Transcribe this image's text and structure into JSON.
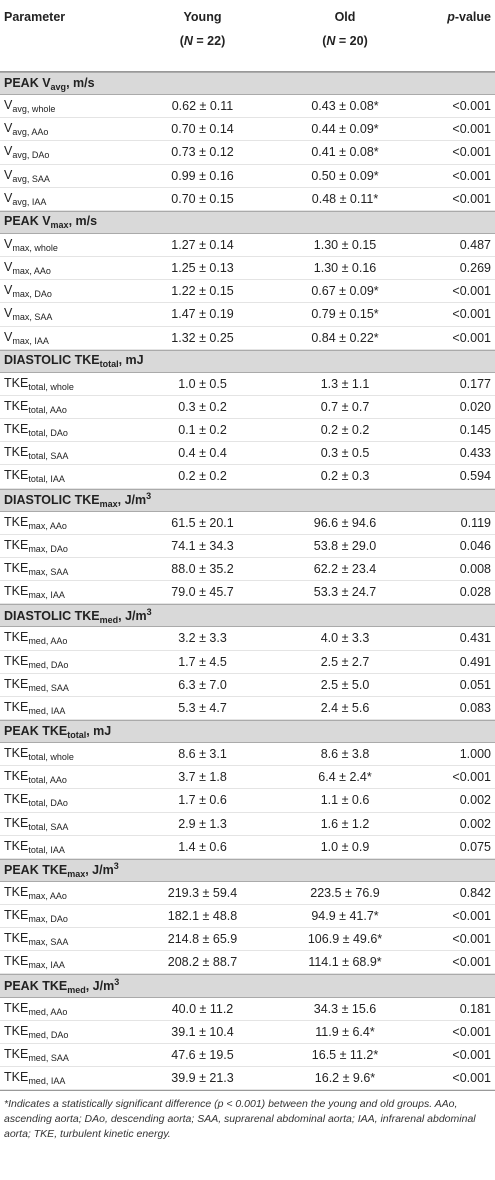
{
  "header": {
    "columns": [
      [
        {
          "text": "Parameter"
        }
      ],
      [
        {
          "text": "Young"
        }
      ],
      [
        {
          "text": "Old"
        }
      ],
      [
        {
          "text": "p",
          "style": "italic"
        },
        {
          "text": "-value"
        }
      ]
    ],
    "counts": [
      [
        {
          "text": "("
        },
        {
          "text": "N",
          "style": "italic"
        },
        {
          "text": " = 22)"
        }
      ],
      [
        {
          "text": "("
        },
        {
          "text": "N",
          "style": "italic"
        },
        {
          "text": " = 20)"
        }
      ]
    ]
  },
  "sections": [
    {
      "title": [
        {
          "text": "PEAK V"
        },
        {
          "text": "avg",
          "style": "sub"
        },
        {
          "text": ", m/s"
        }
      ],
      "rows": [
        {
          "param": [
            {
              "text": "V"
            },
            {
              "text": "avg, whole",
              "style": "sub"
            }
          ],
          "young": "0.62 ± 0.11",
          "old": "0.43 ± 0.08*",
          "p": "<0.001"
        },
        {
          "param": [
            {
              "text": "V"
            },
            {
              "text": "avg, AAo",
              "style": "sub"
            }
          ],
          "young": "0.70 ± 0.14",
          "old": "0.44 ± 0.09*",
          "p": "<0.001"
        },
        {
          "param": [
            {
              "text": "V"
            },
            {
              "text": "avg, DAo",
              "style": "sub"
            }
          ],
          "young": "0.73 ± 0.12",
          "old": "0.41 ± 0.08*",
          "p": "<0.001"
        },
        {
          "param": [
            {
              "text": "V"
            },
            {
              "text": "avg, SAA",
              "style": "sub"
            }
          ],
          "young": "0.99 ± 0.16",
          "old": "0.50 ± 0.09*",
          "p": "<0.001"
        },
        {
          "param": [
            {
              "text": "V"
            },
            {
              "text": "avg, IAA",
              "style": "sub"
            }
          ],
          "young": "0.70 ± 0.15",
          "old": "0.48 ± 0.11*",
          "p": "<0.001"
        }
      ]
    },
    {
      "title": [
        {
          "text": "PEAK V"
        },
        {
          "text": "max",
          "style": "sub"
        },
        {
          "text": ", m/s"
        }
      ],
      "rows": [
        {
          "param": [
            {
              "text": "V"
            },
            {
              "text": "max, whole",
              "style": "sub"
            }
          ],
          "young": "1.27 ± 0.14",
          "old": "1.30 ± 0.15",
          "p": "0.487"
        },
        {
          "param": [
            {
              "text": "V"
            },
            {
              "text": "max, AAo",
              "style": "sub"
            }
          ],
          "young": "1.25 ± 0.13",
          "old": "1.30 ± 0.16",
          "p": "0.269"
        },
        {
          "param": [
            {
              "text": "V"
            },
            {
              "text": "max, DAo",
              "style": "sub"
            }
          ],
          "young": "1.22 ± 0.15",
          "old": "0.67 ± 0.09*",
          "p": "<0.001"
        },
        {
          "param": [
            {
              "text": "V"
            },
            {
              "text": "max, SAA",
              "style": "sub"
            }
          ],
          "young": "1.47 ± 0.19",
          "old": "0.79 ± 0.15*",
          "p": "<0.001"
        },
        {
          "param": [
            {
              "text": "V"
            },
            {
              "text": "max, IAA",
              "style": "sub"
            }
          ],
          "young": "1.32 ± 0.25",
          "old": "0.84 ± 0.22*",
          "p": "<0.001"
        }
      ]
    },
    {
      "title": [
        {
          "text": "DIASTOLIC TKE"
        },
        {
          "text": "total",
          "style": "sub"
        },
        {
          "text": ", mJ"
        }
      ],
      "rows": [
        {
          "param": [
            {
              "text": "TKE"
            },
            {
              "text": "total, whole",
              "style": "sub"
            }
          ],
          "young": "1.0 ± 0.5",
          "old": "1.3 ± 1.1",
          "p": "0.177"
        },
        {
          "param": [
            {
              "text": "TKE"
            },
            {
              "text": "total, AAo",
              "style": "sub"
            }
          ],
          "young": "0.3 ± 0.2",
          "old": "0.7 ± 0.7",
          "p": "0.020"
        },
        {
          "param": [
            {
              "text": "TKE"
            },
            {
              "text": "total, DAo",
              "style": "sub"
            }
          ],
          "young": "0.1 ± 0.2",
          "old": "0.2 ± 0.2",
          "p": "0.145"
        },
        {
          "param": [
            {
              "text": "TKE"
            },
            {
              "text": "total, SAA",
              "style": "sub"
            }
          ],
          "young": "0.4 ± 0.4",
          "old": "0.3 ± 0.5",
          "p": "0.433"
        },
        {
          "param": [
            {
              "text": "TKE"
            },
            {
              "text": "total, IAA",
              "style": "sub"
            }
          ],
          "young": "0.2 ± 0.2",
          "old": "0.2 ± 0.3",
          "p": "0.594"
        }
      ]
    },
    {
      "title": [
        {
          "text": "DIASTOLIC TKE"
        },
        {
          "text": "max",
          "style": "sub"
        },
        {
          "text": ", J/m"
        },
        {
          "text": "3",
          "style": "sup"
        }
      ],
      "rows": [
        {
          "param": [
            {
              "text": "TKE"
            },
            {
              "text": "max, AAo",
              "style": "sub"
            }
          ],
          "young": "61.5 ± 20.1",
          "old": "96.6 ± 94.6",
          "p": "0.119"
        },
        {
          "param": [
            {
              "text": "TKE"
            },
            {
              "text": "max, DAo",
              "style": "sub"
            }
          ],
          "young": "74.1 ± 34.3",
          "old": "53.8 ± 29.0",
          "p": "0.046"
        },
        {
          "param": [
            {
              "text": "TKE"
            },
            {
              "text": "max, SAA",
              "style": "sub"
            }
          ],
          "young": "88.0 ± 35.2",
          "old": "62.2 ± 23.4",
          "p": "0.008"
        },
        {
          "param": [
            {
              "text": "TKE"
            },
            {
              "text": "max, IAA",
              "style": "sub"
            }
          ],
          "young": "79.0 ± 45.7",
          "old": "53.3 ± 24.7",
          "p": "0.028"
        }
      ]
    },
    {
      "title": [
        {
          "text": "DIASTOLIC TKE"
        },
        {
          "text": "med",
          "style": "sub"
        },
        {
          "text": ", J/m"
        },
        {
          "text": "3",
          "style": "sup"
        }
      ],
      "rows": [
        {
          "param": [
            {
              "text": "TKE"
            },
            {
              "text": "med, AAo",
              "style": "sub"
            }
          ],
          "young": "3.2 ± 3.3",
          "old": "4.0 ± 3.3",
          "p": "0.431"
        },
        {
          "param": [
            {
              "text": "TKE"
            },
            {
              "text": "med, DAo",
              "style": "sub"
            }
          ],
          "young": "1.7 ± 4.5",
          "old": "2.5 ± 2.7",
          "p": "0.491"
        },
        {
          "param": [
            {
              "text": "TKE"
            },
            {
              "text": "med, SAA",
              "style": "sub"
            }
          ],
          "young": "6.3 ± 7.0",
          "old": "2.5 ± 5.0",
          "p": "0.051"
        },
        {
          "param": [
            {
              "text": "TKE"
            },
            {
              "text": "med, IAA",
              "style": "sub"
            }
          ],
          "young": "5.3 ± 4.7",
          "old": "2.4 ± 5.6",
          "p": "0.083"
        }
      ]
    },
    {
      "title": [
        {
          "text": "PEAK TKE"
        },
        {
          "text": "total",
          "style": "sub"
        },
        {
          "text": ", mJ"
        }
      ],
      "rows": [
        {
          "param": [
            {
              "text": "TKE"
            },
            {
              "text": "total, whole",
              "style": "sub"
            }
          ],
          "young": "8.6 ± 3.1",
          "old": "8.6 ± 3.8",
          "p": "1.000"
        },
        {
          "param": [
            {
              "text": "TKE"
            },
            {
              "text": "total, AAo",
              "style": "sub"
            }
          ],
          "young": "3.7 ± 1.8",
          "old": "6.4 ± 2.4*",
          "p": "<0.001"
        },
        {
          "param": [
            {
              "text": "TKE"
            },
            {
              "text": "total, DAo",
              "style": "sub"
            }
          ],
          "young": "1.7 ± 0.6",
          "old": "1.1 ± 0.6",
          "p": "0.002"
        },
        {
          "param": [
            {
              "text": "TKE"
            },
            {
              "text": "total, SAA",
              "style": "sub"
            }
          ],
          "young": "2.9 ± 1.3",
          "old": "1.6 ± 1.2",
          "p": "0.002"
        },
        {
          "param": [
            {
              "text": "TKE"
            },
            {
              "text": "total, IAA",
              "style": "sub"
            }
          ],
          "young": "1.4 ± 0.6",
          "old": "1.0 ± 0.9",
          "p": "0.075"
        }
      ]
    },
    {
      "title": [
        {
          "text": "PEAK TKE"
        },
        {
          "text": "max",
          "style": "sub"
        },
        {
          "text": ", J/m"
        },
        {
          "text": "3",
          "style": "sup"
        }
      ],
      "rows": [
        {
          "param": [
            {
              "text": "TKE"
            },
            {
              "text": "max, AAo",
              "style": "sub"
            }
          ],
          "young": "219.3 ± 59.4",
          "old": "223.5 ± 76.9",
          "p": "0.842"
        },
        {
          "param": [
            {
              "text": "TKE"
            },
            {
              "text": "max, DAo",
              "style": "sub"
            }
          ],
          "young": "182.1 ± 48.8",
          "old": "94.9 ± 41.7*",
          "p": "<0.001"
        },
        {
          "param": [
            {
              "text": "TKE"
            },
            {
              "text": "max, SAA",
              "style": "sub"
            }
          ],
          "young": "214.8 ± 65.9",
          "old": "106.9 ± 49.6*",
          "p": "<0.001"
        },
        {
          "param": [
            {
              "text": "TKE"
            },
            {
              "text": "max, IAA",
              "style": "sub"
            }
          ],
          "young": "208.2 ± 88.7",
          "old": "114.1 ± 68.9*",
          "p": "<0.001"
        }
      ]
    },
    {
      "title": [
        {
          "text": "PEAK TKE"
        },
        {
          "text": "med",
          "style": "sub"
        },
        {
          "text": ", J/m"
        },
        {
          "text": "3",
          "style": "sup"
        }
      ],
      "rows": [
        {
          "param": [
            {
              "text": "TKE"
            },
            {
              "text": "med, AAo",
              "style": "sub"
            }
          ],
          "young": "40.0 ± 11.2",
          "old": "34.3 ± 15.6",
          "p": "0.181"
        },
        {
          "param": [
            {
              "text": "TKE"
            },
            {
              "text": "med, DAo",
              "style": "sub"
            }
          ],
          "young": "39.1 ± 10.4",
          "old": "11.9 ± 6.4*",
          "p": "<0.001"
        },
        {
          "param": [
            {
              "text": "TKE"
            },
            {
              "text": "med, SAA",
              "style": "sub"
            }
          ],
          "young": "47.6 ± 19.5",
          "old": "16.5 ± 11.2*",
          "p": "<0.001"
        },
        {
          "param": [
            {
              "text": "TKE"
            },
            {
              "text": "med, IAA",
              "style": "sub"
            }
          ],
          "young": "39.9 ± 21.3",
          "old": "16.2 ± 9.6*",
          "p": "<0.001"
        }
      ]
    }
  ],
  "footnote": "*Indicates a statistically significant difference (p < 0.001) between the young and old groups. AAo, ascending aorta; DAo, descending aorta; SAA, suprarenal abdominal aorta; IAA, infrarenal abdominal aorta; TKE, turbulent kinetic energy."
}
